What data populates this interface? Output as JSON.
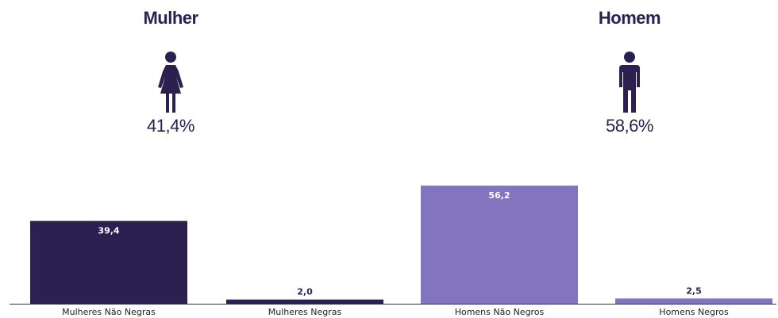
{
  "header": {
    "female": {
      "title": "Mulher",
      "percent": "41,4%",
      "icon": "woman-icon"
    },
    "male": {
      "title": "Homem",
      "percent": "58,6%",
      "icon": "man-icon"
    }
  },
  "colors": {
    "dark": "#2b2150",
    "light": "#8274be",
    "label_on_bar": "#ffffff",
    "label_above_bar": "#2b2150"
  },
  "chart_data": {
    "type": "bar",
    "categories": [
      "Mulheres Não Negras",
      "Mulheres Negras",
      "Homens Não Negros",
      "Homens Negros"
    ],
    "values": [
      39.4,
      2.0,
      56.2,
      2.5
    ],
    "value_labels": [
      "39,4",
      "2,0",
      "56,2",
      "2,5"
    ],
    "bar_colors": [
      "#2b2150",
      "#2b2150",
      "#8274be",
      "#8274be"
    ],
    "ylim": [
      0,
      60
    ],
    "title": "",
    "xlabel": "",
    "ylabel": "",
    "grid": false,
    "legend": "none"
  }
}
